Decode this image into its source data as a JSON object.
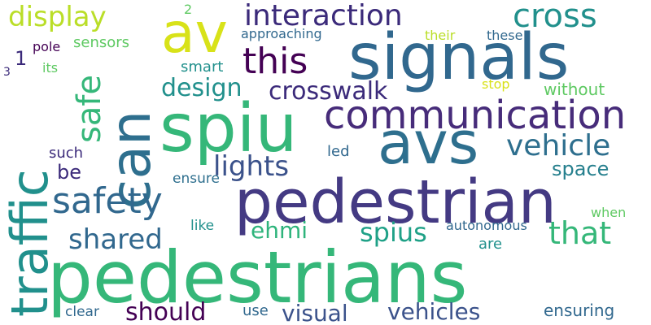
{
  "palette": {
    "dark_purple": "#440154",
    "indigo": "#3b2a7a",
    "blue": "#31688e",
    "teal": "#21908c",
    "green": "#35b779",
    "lime": "#90d743",
    "yellow": "#d8e219"
  },
  "words": [
    {
      "text": "pedestrians",
      "color": "#35b779"
    },
    {
      "text": "traffic",
      "color": "#21908c"
    },
    {
      "text": "can",
      "color": "#2e6f8e"
    },
    {
      "text": "signals",
      "color": "#31688e"
    },
    {
      "text": "av",
      "color": "#d8e219"
    },
    {
      "text": "spiu",
      "color": "#35b779"
    },
    {
      "text": "avs",
      "color": "#2e6f8e"
    },
    {
      "text": "pedestrian",
      "color": "#443a83"
    },
    {
      "text": "communication",
      "color": "#472c7a"
    },
    {
      "text": "safety",
      "color": "#31688e"
    },
    {
      "text": "this",
      "color": "#440154"
    },
    {
      "text": "interaction",
      "color": "#3b2a7a"
    },
    {
      "text": "cross",
      "color": "#21908c"
    },
    {
      "text": "display",
      "color": "#bade28"
    },
    {
      "text": "safe",
      "color": "#35b779"
    },
    {
      "text": "vehicle",
      "color": "#2e6f8e"
    },
    {
      "text": "crosswalk",
      "color": "#3b2a7a"
    },
    {
      "text": "design",
      "color": "#21908c"
    },
    {
      "text": "lights",
      "color": "#3b528b"
    },
    {
      "text": "shared",
      "color": "#31688e"
    },
    {
      "text": "ehmi",
      "color": "#2fb47c"
    },
    {
      "text": "spius",
      "color": "#1fa187"
    },
    {
      "text": "that",
      "color": "#35b779"
    },
    {
      "text": "space",
      "color": "#27808e"
    },
    {
      "text": "should",
      "color": "#440154"
    },
    {
      "text": "visual",
      "color": "#3b528b"
    },
    {
      "text": "vehicles",
      "color": "#3b528b"
    },
    {
      "text": "ensuring",
      "color": "#31688e"
    },
    {
      "text": "be",
      "color": "#3b2a7a"
    },
    {
      "text": "such",
      "color": "#3b2a7a"
    },
    {
      "text": "led",
      "color": "#31688e"
    },
    {
      "text": "ensure",
      "color": "#2e6f8e"
    },
    {
      "text": "like",
      "color": "#21908c"
    },
    {
      "text": "use",
      "color": "#31688e"
    },
    {
      "text": "clear",
      "color": "#31688e"
    },
    {
      "text": "autonomous",
      "color": "#31688e"
    },
    {
      "text": "are",
      "color": "#21908c"
    },
    {
      "text": "when",
      "color": "#5ec962"
    },
    {
      "text": "without",
      "color": "#5ec962"
    },
    {
      "text": "stop",
      "color": "#d8e219"
    },
    {
      "text": "smart",
      "color": "#21908c"
    },
    {
      "text": "approaching",
      "color": "#31688e"
    },
    {
      "text": "their",
      "color": "#bade28"
    },
    {
      "text": "these",
      "color": "#31688e"
    },
    {
      "text": "sensors",
      "color": "#5ec962"
    },
    {
      "text": "pole",
      "color": "#440154"
    },
    {
      "text": "its",
      "color": "#5ec962"
    },
    {
      "text": "1",
      "color": "#3b2a7a"
    },
    {
      "text": "2",
      "color": "#5ec962"
    },
    {
      "text": "3",
      "color": "#3b2a7a"
    }
  ]
}
